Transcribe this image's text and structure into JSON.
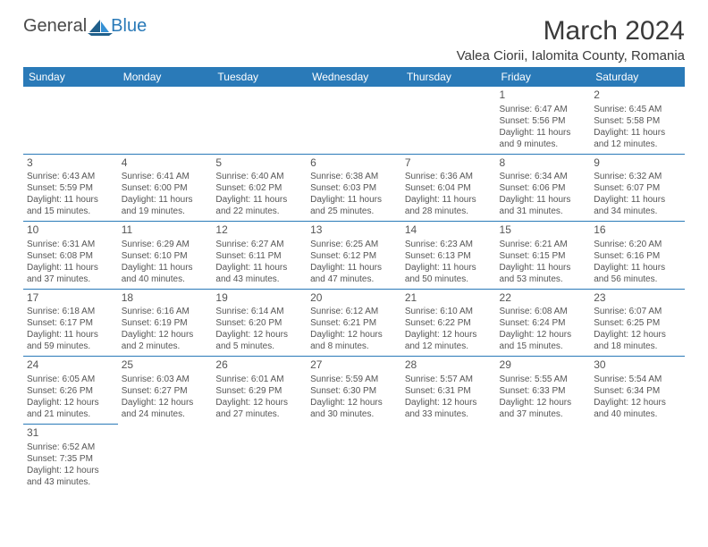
{
  "brand": {
    "part1": "General",
    "part2": "Blue"
  },
  "title": "March 2024",
  "location": "Valea Ciorii, Ialomita County, Romania",
  "colors": {
    "header_bg": "#2a7ab8",
    "header_text": "#ffffff",
    "border": "#2a7ab8",
    "body_text": "#555555",
    "background": "#ffffff"
  },
  "weekdays": [
    "Sunday",
    "Monday",
    "Tuesday",
    "Wednesday",
    "Thursday",
    "Friday",
    "Saturday"
  ],
  "weeks": [
    [
      null,
      null,
      null,
      null,
      null,
      {
        "day": "1",
        "sunrise": "Sunrise: 6:47 AM",
        "sunset": "Sunset: 5:56 PM",
        "daylight": "Daylight: 11 hours and 9 minutes."
      },
      {
        "day": "2",
        "sunrise": "Sunrise: 6:45 AM",
        "sunset": "Sunset: 5:58 PM",
        "daylight": "Daylight: 11 hours and 12 minutes."
      }
    ],
    [
      {
        "day": "3",
        "sunrise": "Sunrise: 6:43 AM",
        "sunset": "Sunset: 5:59 PM",
        "daylight": "Daylight: 11 hours and 15 minutes."
      },
      {
        "day": "4",
        "sunrise": "Sunrise: 6:41 AM",
        "sunset": "Sunset: 6:00 PM",
        "daylight": "Daylight: 11 hours and 19 minutes."
      },
      {
        "day": "5",
        "sunrise": "Sunrise: 6:40 AM",
        "sunset": "Sunset: 6:02 PM",
        "daylight": "Daylight: 11 hours and 22 minutes."
      },
      {
        "day": "6",
        "sunrise": "Sunrise: 6:38 AM",
        "sunset": "Sunset: 6:03 PM",
        "daylight": "Daylight: 11 hours and 25 minutes."
      },
      {
        "day": "7",
        "sunrise": "Sunrise: 6:36 AM",
        "sunset": "Sunset: 6:04 PM",
        "daylight": "Daylight: 11 hours and 28 minutes."
      },
      {
        "day": "8",
        "sunrise": "Sunrise: 6:34 AM",
        "sunset": "Sunset: 6:06 PM",
        "daylight": "Daylight: 11 hours and 31 minutes."
      },
      {
        "day": "9",
        "sunrise": "Sunrise: 6:32 AM",
        "sunset": "Sunset: 6:07 PM",
        "daylight": "Daylight: 11 hours and 34 minutes."
      }
    ],
    [
      {
        "day": "10",
        "sunrise": "Sunrise: 6:31 AM",
        "sunset": "Sunset: 6:08 PM",
        "daylight": "Daylight: 11 hours and 37 minutes."
      },
      {
        "day": "11",
        "sunrise": "Sunrise: 6:29 AM",
        "sunset": "Sunset: 6:10 PM",
        "daylight": "Daylight: 11 hours and 40 minutes."
      },
      {
        "day": "12",
        "sunrise": "Sunrise: 6:27 AM",
        "sunset": "Sunset: 6:11 PM",
        "daylight": "Daylight: 11 hours and 43 minutes."
      },
      {
        "day": "13",
        "sunrise": "Sunrise: 6:25 AM",
        "sunset": "Sunset: 6:12 PM",
        "daylight": "Daylight: 11 hours and 47 minutes."
      },
      {
        "day": "14",
        "sunrise": "Sunrise: 6:23 AM",
        "sunset": "Sunset: 6:13 PM",
        "daylight": "Daylight: 11 hours and 50 minutes."
      },
      {
        "day": "15",
        "sunrise": "Sunrise: 6:21 AM",
        "sunset": "Sunset: 6:15 PM",
        "daylight": "Daylight: 11 hours and 53 minutes."
      },
      {
        "day": "16",
        "sunrise": "Sunrise: 6:20 AM",
        "sunset": "Sunset: 6:16 PM",
        "daylight": "Daylight: 11 hours and 56 minutes."
      }
    ],
    [
      {
        "day": "17",
        "sunrise": "Sunrise: 6:18 AM",
        "sunset": "Sunset: 6:17 PM",
        "daylight": "Daylight: 11 hours and 59 minutes."
      },
      {
        "day": "18",
        "sunrise": "Sunrise: 6:16 AM",
        "sunset": "Sunset: 6:19 PM",
        "daylight": "Daylight: 12 hours and 2 minutes."
      },
      {
        "day": "19",
        "sunrise": "Sunrise: 6:14 AM",
        "sunset": "Sunset: 6:20 PM",
        "daylight": "Daylight: 12 hours and 5 minutes."
      },
      {
        "day": "20",
        "sunrise": "Sunrise: 6:12 AM",
        "sunset": "Sunset: 6:21 PM",
        "daylight": "Daylight: 12 hours and 8 minutes."
      },
      {
        "day": "21",
        "sunrise": "Sunrise: 6:10 AM",
        "sunset": "Sunset: 6:22 PM",
        "daylight": "Daylight: 12 hours and 12 minutes."
      },
      {
        "day": "22",
        "sunrise": "Sunrise: 6:08 AM",
        "sunset": "Sunset: 6:24 PM",
        "daylight": "Daylight: 12 hours and 15 minutes."
      },
      {
        "day": "23",
        "sunrise": "Sunrise: 6:07 AM",
        "sunset": "Sunset: 6:25 PM",
        "daylight": "Daylight: 12 hours and 18 minutes."
      }
    ],
    [
      {
        "day": "24",
        "sunrise": "Sunrise: 6:05 AM",
        "sunset": "Sunset: 6:26 PM",
        "daylight": "Daylight: 12 hours and 21 minutes."
      },
      {
        "day": "25",
        "sunrise": "Sunrise: 6:03 AM",
        "sunset": "Sunset: 6:27 PM",
        "daylight": "Daylight: 12 hours and 24 minutes."
      },
      {
        "day": "26",
        "sunrise": "Sunrise: 6:01 AM",
        "sunset": "Sunset: 6:29 PM",
        "daylight": "Daylight: 12 hours and 27 minutes."
      },
      {
        "day": "27",
        "sunrise": "Sunrise: 5:59 AM",
        "sunset": "Sunset: 6:30 PM",
        "daylight": "Daylight: 12 hours and 30 minutes."
      },
      {
        "day": "28",
        "sunrise": "Sunrise: 5:57 AM",
        "sunset": "Sunset: 6:31 PM",
        "daylight": "Daylight: 12 hours and 33 minutes."
      },
      {
        "day": "29",
        "sunrise": "Sunrise: 5:55 AM",
        "sunset": "Sunset: 6:33 PM",
        "daylight": "Daylight: 12 hours and 37 minutes."
      },
      {
        "day": "30",
        "sunrise": "Sunrise: 5:54 AM",
        "sunset": "Sunset: 6:34 PM",
        "daylight": "Daylight: 12 hours and 40 minutes."
      }
    ],
    [
      {
        "day": "31",
        "sunrise": "Sunrise: 6:52 AM",
        "sunset": "Sunset: 7:35 PM",
        "daylight": "Daylight: 12 hours and 43 minutes."
      },
      null,
      null,
      null,
      null,
      null,
      null
    ]
  ]
}
